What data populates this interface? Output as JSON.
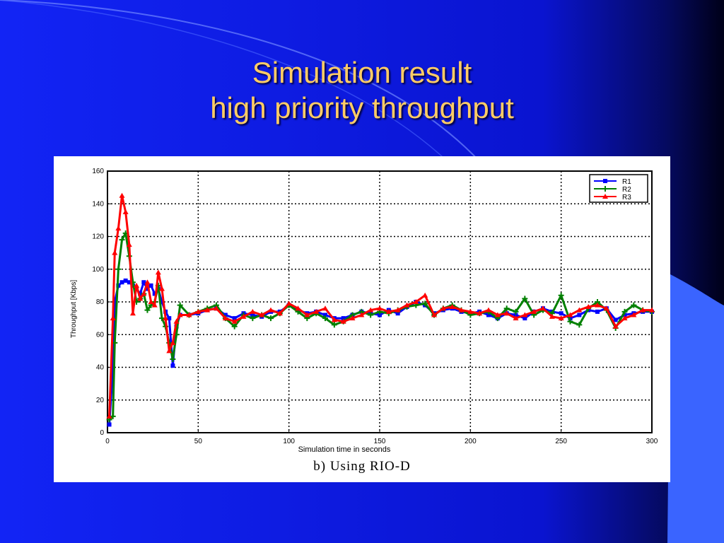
{
  "slide": {
    "title_line1": "Simulation result",
    "title_line2": "high priority throughput",
    "caption": "b) Using RIO-D",
    "colors": {
      "background": "#0a17e6",
      "title": "#ffcc66",
      "panel": "#ffffff"
    }
  },
  "chart_data": {
    "type": "line",
    "title": "",
    "xlabel": "Simulation time in seconds",
    "ylabel": "Throughput [Kbps]",
    "xlim": [
      0,
      300
    ],
    "ylim": [
      0,
      160
    ],
    "xticks": [
      0,
      50,
      100,
      150,
      200,
      250,
      300
    ],
    "yticks": [
      0,
      20,
      40,
      60,
      80,
      100,
      120,
      140,
      160
    ],
    "grid": true,
    "legend_position": "top-right",
    "series": [
      {
        "name": "R1",
        "color": "#0000ff",
        "marker": "square",
        "x": [
          1,
          3,
          4,
          6,
          8,
          10,
          12,
          14,
          16,
          18,
          20,
          22,
          24,
          26,
          28,
          30,
          32,
          34,
          36,
          38,
          40,
          45,
          50,
          55,
          60,
          65,
          70,
          75,
          80,
          85,
          90,
          95,
          100,
          105,
          110,
          115,
          120,
          125,
          130,
          135,
          140,
          145,
          150,
          155,
          160,
          165,
          170,
          175,
          180,
          185,
          190,
          195,
          200,
          205,
          210,
          215,
          220,
          225,
          230,
          235,
          240,
          245,
          250,
          255,
          260,
          265,
          270,
          275,
          280,
          285,
          290,
          295,
          300
        ],
        "y": [
          5,
          40,
          80,
          90,
          92,
          93,
          92,
          90,
          88,
          85,
          92,
          88,
          90,
          85,
          88,
          80,
          74,
          70,
          41,
          65,
          72,
          72,
          73,
          75,
          76,
          72,
          70,
          73,
          72,
          71,
          74,
          74,
          78,
          75,
          73,
          74,
          72,
          70,
          70,
          72,
          74,
          73,
          72,
          75,
          73,
          77,
          80,
          78,
          73,
          75,
          76,
          74,
          73,
          74,
          72,
          70,
          73,
          72,
          70,
          74,
          76,
          74,
          73,
          70,
          72,
          75,
          74,
          76,
          69,
          72,
          73,
          74,
          74
        ]
      },
      {
        "name": "R2",
        "color": "#008000",
        "marker": "plus",
        "x": [
          1,
          3,
          4,
          6,
          8,
          10,
          12,
          14,
          16,
          18,
          20,
          22,
          24,
          26,
          28,
          30,
          32,
          34,
          36,
          38,
          40,
          45,
          50,
          55,
          60,
          65,
          70,
          75,
          80,
          85,
          90,
          95,
          100,
          105,
          110,
          115,
          120,
          125,
          130,
          135,
          140,
          145,
          150,
          155,
          160,
          165,
          170,
          175,
          180,
          185,
          190,
          195,
          200,
          205,
          210,
          215,
          220,
          225,
          230,
          235,
          240,
          245,
          250,
          255,
          260,
          265,
          270,
          275,
          280,
          285,
          290,
          295,
          300
        ],
        "y": [
          8,
          10,
          55,
          100,
          118,
          122,
          108,
          92,
          80,
          82,
          85,
          75,
          78,
          80,
          90,
          70,
          65,
          55,
          45,
          60,
          78,
          72,
          74,
          76,
          78,
          70,
          65,
          72,
          70,
          72,
          70,
          73,
          78,
          74,
          70,
          73,
          70,
          66,
          68,
          72,
          74,
          72,
          74,
          73,
          75,
          77,
          78,
          79,
          72,
          76,
          78,
          75,
          72,
          73,
          74,
          70,
          76,
          74,
          82,
          72,
          75,
          73,
          84,
          68,
          66,
          76,
          80,
          75,
          64,
          74,
          78,
          75,
          74
        ]
      },
      {
        "name": "R3",
        "color": "#ff0000",
        "marker": "triangle",
        "x": [
          1,
          3,
          4,
          6,
          8,
          10,
          12,
          14,
          16,
          18,
          20,
          22,
          24,
          26,
          28,
          30,
          32,
          34,
          36,
          38,
          40,
          45,
          50,
          55,
          60,
          65,
          70,
          75,
          80,
          85,
          90,
          95,
          100,
          105,
          110,
          115,
          120,
          125,
          130,
          135,
          140,
          145,
          150,
          155,
          160,
          165,
          170,
          175,
          180,
          185,
          190,
          195,
          200,
          205,
          210,
          215,
          220,
          225,
          230,
          235,
          240,
          245,
          250,
          255,
          260,
          265,
          270,
          275,
          280,
          285,
          290,
          295,
          300
        ],
        "y": [
          10,
          70,
          110,
          125,
          145,
          135,
          115,
          73,
          90,
          82,
          85,
          92,
          80,
          78,
          98,
          88,
          70,
          50,
          55,
          68,
          72,
          72,
          74,
          75,
          76,
          70,
          68,
          71,
          74,
          72,
          75,
          73,
          79,
          76,
          72,
          74,
          76,
          69,
          68,
          70,
          72,
          75,
          76,
          74,
          75,
          78,
          80,
          84,
          72,
          76,
          77,
          75,
          74,
          73,
          75,
          72,
          73,
          70,
          72,
          74,
          76,
          71,
          70,
          72,
          75,
          77,
          78,
          76,
          65,
          70,
          72,
          75,
          75
        ]
      }
    ]
  }
}
